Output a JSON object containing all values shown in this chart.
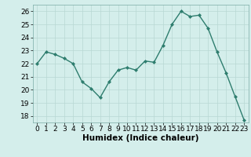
{
  "x": [
    0,
    1,
    2,
    3,
    4,
    5,
    6,
    7,
    8,
    9,
    10,
    11,
    12,
    13,
    14,
    15,
    16,
    17,
    18,
    19,
    20,
    21,
    22,
    23
  ],
  "y": [
    22.0,
    22.9,
    22.7,
    22.4,
    22.0,
    20.6,
    20.1,
    19.4,
    20.6,
    21.5,
    21.7,
    21.5,
    22.2,
    22.1,
    23.4,
    25.0,
    26.0,
    25.6,
    25.7,
    24.7,
    22.9,
    21.3,
    19.5,
    17.7
  ],
  "line_color": "#2e7d6e",
  "marker": "D",
  "marker_size": 2.0,
  "bg_color": "#d4eeeb",
  "grid_color": "#b8d8d4",
  "xlabel": "Humidex (Indice chaleur)",
  "xlim": [
    -0.5,
    23.5
  ],
  "ylim": [
    17.5,
    26.5
  ],
  "yticks": [
    18,
    19,
    20,
    21,
    22,
    23,
    24,
    25,
    26
  ],
  "xticks": [
    0,
    1,
    2,
    3,
    4,
    5,
    6,
    7,
    8,
    9,
    10,
    11,
    12,
    13,
    14,
    15,
    16,
    17,
    18,
    19,
    20,
    21,
    22,
    23
  ],
  "tick_fontsize": 6.5,
  "xlabel_fontsize": 7.5,
  "linewidth": 1.0
}
